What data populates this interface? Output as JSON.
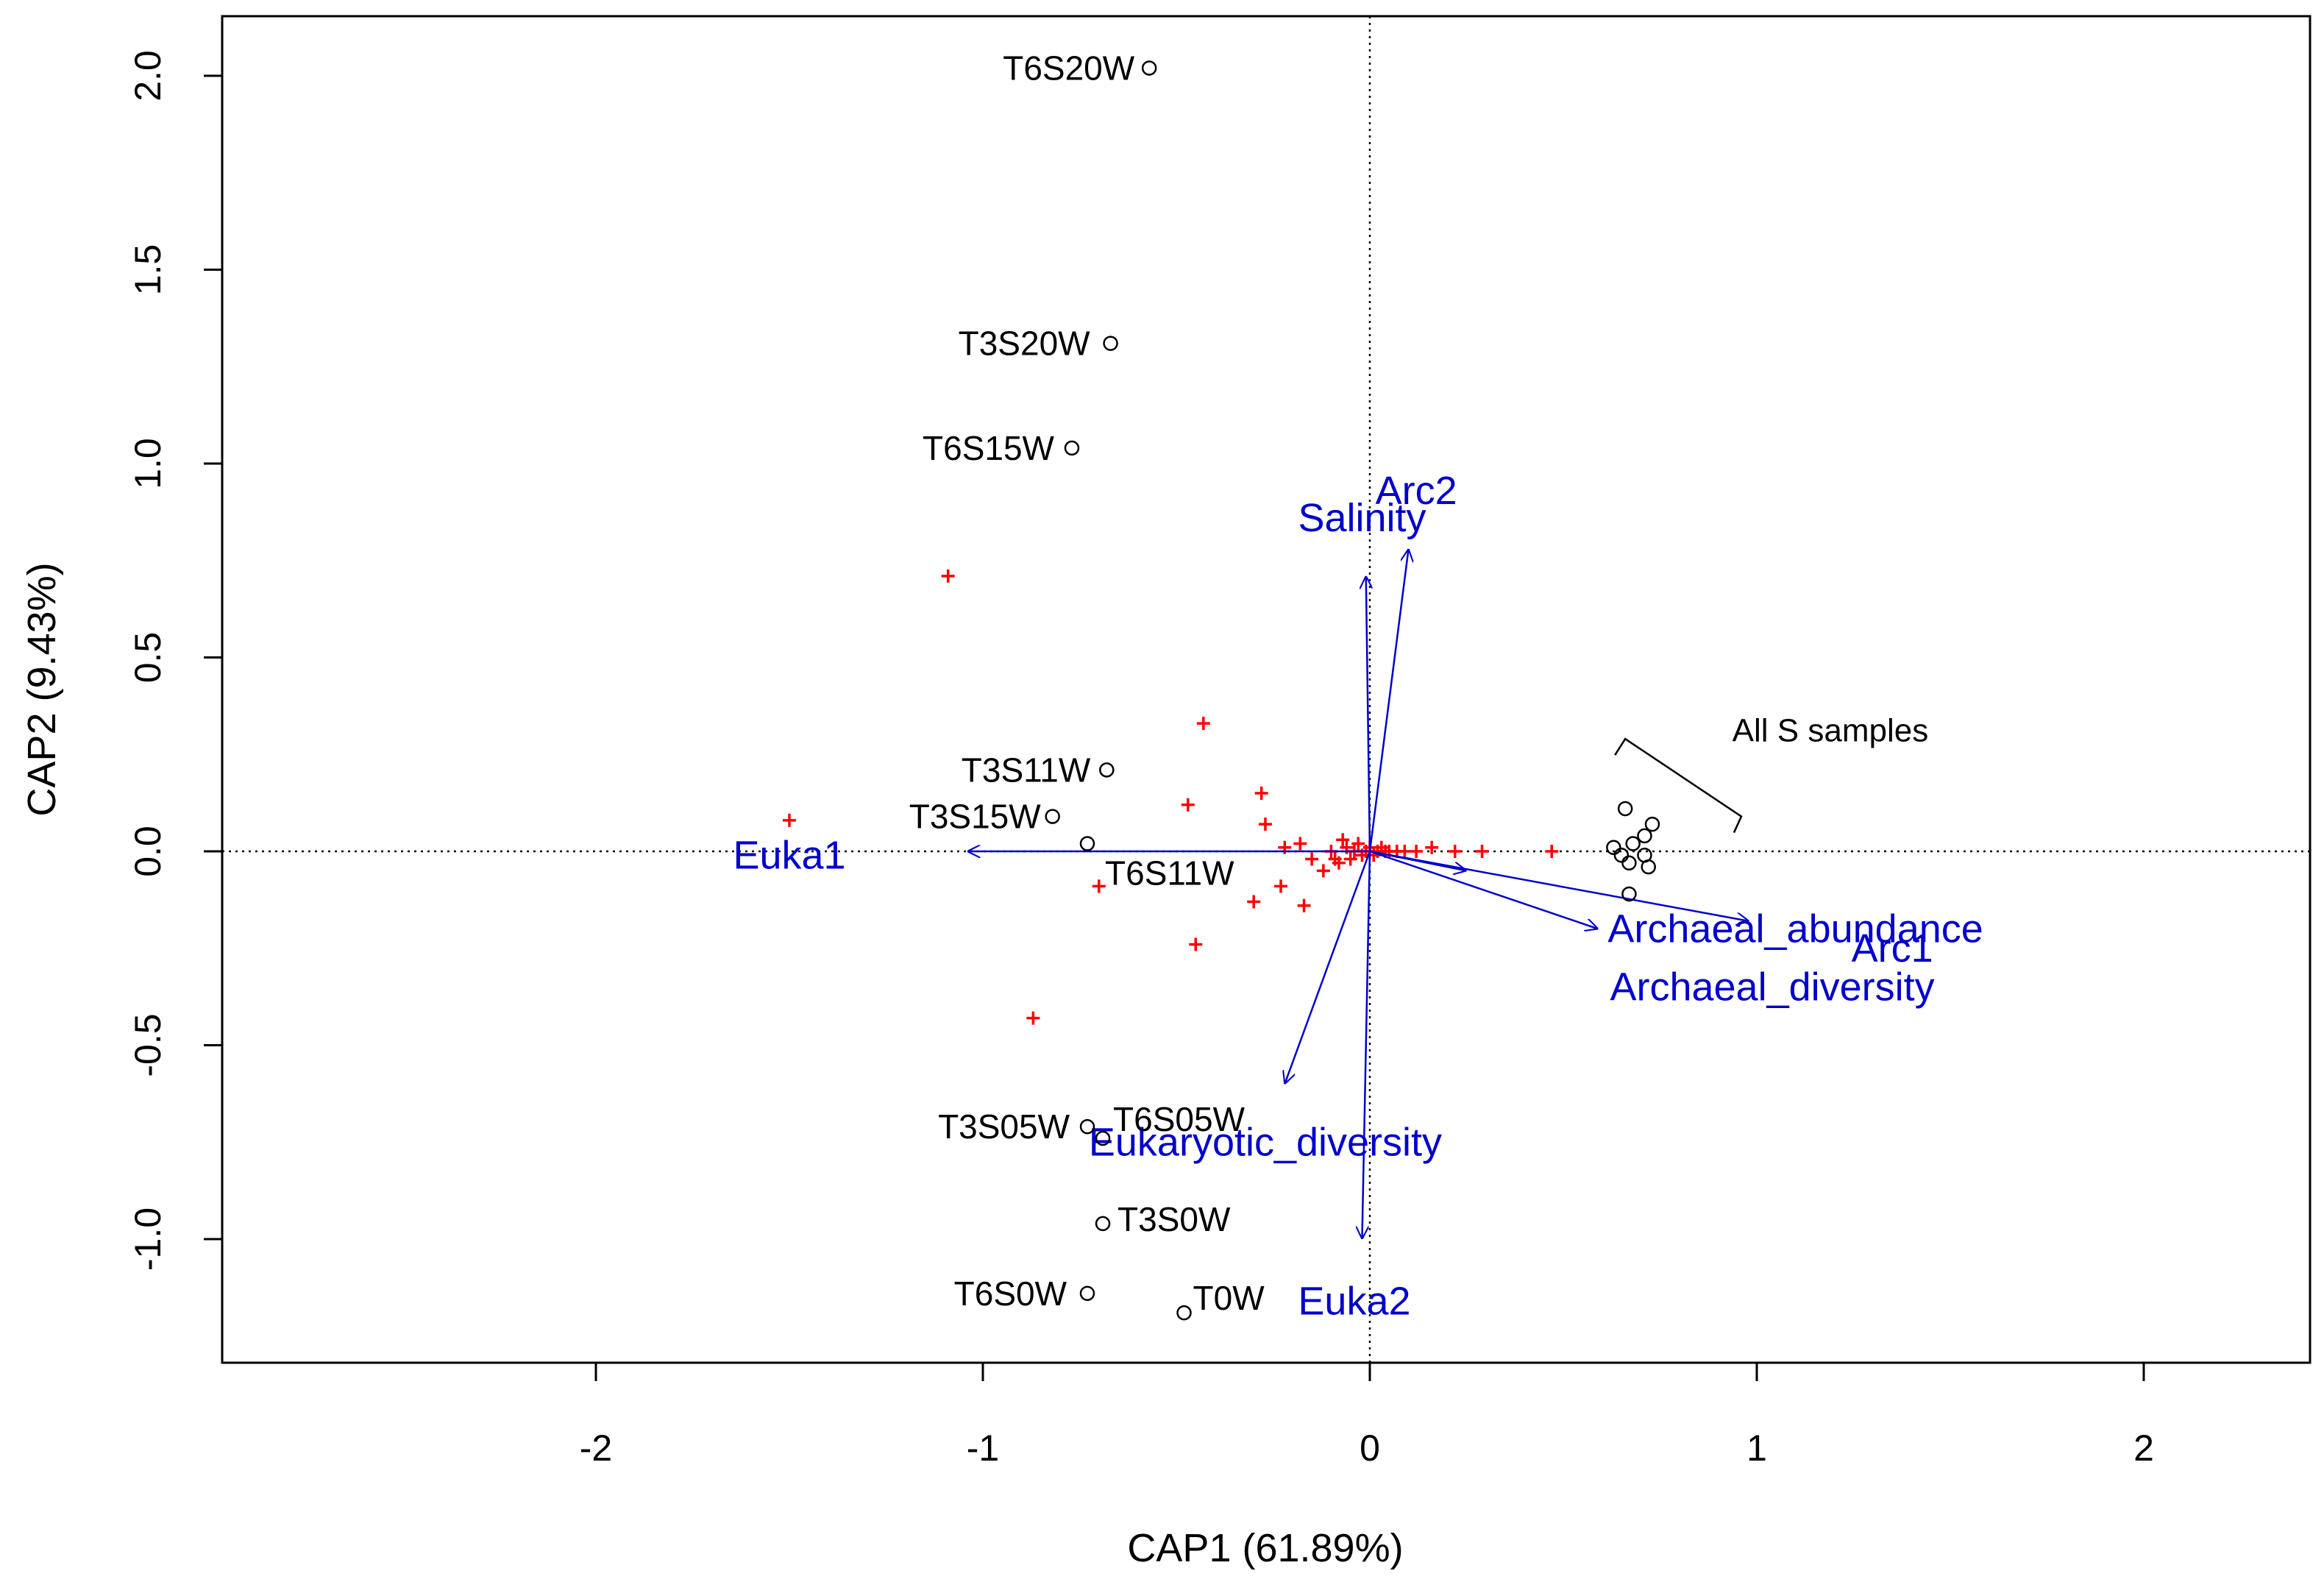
{
  "chart_data": {
    "type": "scatter",
    "title": "",
    "xlabel": "CAP1 (61.89%)",
    "ylabel": "CAP2 (9.43%)",
    "xlim": [
      -2.9,
      2.4
    ],
    "ylim": [
      -1.32,
      2.16
    ],
    "x_ticks": [
      -2,
      -1,
      0,
      1,
      2
    ],
    "x_tick_labels": [
      "-2",
      "-1",
      "0",
      "1",
      "2"
    ],
    "y_ticks": [
      -1.0,
      -0.5,
      0.0,
      0.5,
      1.0,
      1.5,
      2.0
    ],
    "y_tick_labels": [
      "-1.0",
      "-0.5",
      "0.0",
      "0.5",
      "1.0",
      "1.5",
      "2.0"
    ],
    "reference_lines": {
      "x": 0,
      "y": 0,
      "style": "dotted"
    },
    "colors": {
      "sites": "#000000",
      "species": "#ff0000",
      "vectors": "#0000cc"
    },
    "sites": [
      {
        "label": "T6S20W",
        "x": -0.57,
        "y": 2.02
      },
      {
        "label": "T3S20W",
        "x": -0.67,
        "y": 1.31
      },
      {
        "label": "T6S15W",
        "x": -0.77,
        "y": 1.04
      },
      {
        "label": "T3S11W",
        "x": -0.68,
        "y": 0.21
      },
      {
        "label": "T3S15W",
        "x": -0.82,
        "y": 0.09
      },
      {
        "label": "T6S11W",
        "x": -0.73,
        "y": 0.02
      },
      {
        "label": "T3S05W",
        "x": -0.73,
        "y": -0.71
      },
      {
        "label": "T6S05W",
        "x": -0.69,
        "y": -0.74
      },
      {
        "label": "T3S0W",
        "x": -0.69,
        "y": -0.96
      },
      {
        "label": "T6S0W",
        "x": -0.73,
        "y": -1.14
      },
      {
        "label": "T0W",
        "x": -0.48,
        "y": -1.19
      },
      {
        "label": "",
        "x": 0.66,
        "y": 0.11
      },
      {
        "label": "",
        "x": 0.73,
        "y": 0.07
      },
      {
        "label": "",
        "x": 0.71,
        "y": 0.04
      },
      {
        "label": "",
        "x": 0.63,
        "y": 0.01
      },
      {
        "label": "",
        "x": 0.68,
        "y": 0.02
      },
      {
        "label": "",
        "x": 0.65,
        "y": -0.01
      },
      {
        "label": "",
        "x": 0.71,
        "y": -0.01
      },
      {
        "label": "",
        "x": 0.67,
        "y": -0.03
      },
      {
        "label": "",
        "x": 0.72,
        "y": -0.04
      },
      {
        "label": "",
        "x": 0.67,
        "y": -0.11
      }
    ],
    "species": [
      {
        "x": -1.09,
        "y": 0.71
      },
      {
        "x": -1.5,
        "y": 0.08
      },
      {
        "x": -0.43,
        "y": 0.33
      },
      {
        "x": -0.28,
        "y": 0.15
      },
      {
        "x": -0.47,
        "y": 0.12
      },
      {
        "x": -0.27,
        "y": 0.07
      },
      {
        "x": -0.7,
        "y": -0.09
      },
      {
        "x": -0.3,
        "y": -0.13
      },
      {
        "x": -0.17,
        "y": -0.14
      },
      {
        "x": -0.45,
        "y": -0.24
      },
      {
        "x": -0.87,
        "y": -0.43
      },
      {
        "x": -0.23,
        "y": -0.09
      },
      {
        "x": -0.22,
        "y": 0.01
      },
      {
        "x": -0.18,
        "y": 0.02
      },
      {
        "x": -0.15,
        "y": -0.02
      },
      {
        "x": -0.12,
        "y": -0.05
      },
      {
        "x": -0.1,
        "y": 0.0
      },
      {
        "x": -0.08,
        "y": -0.03
      },
      {
        "x": -0.06,
        "y": 0.01
      },
      {
        "x": -0.05,
        "y": -0.02
      },
      {
        "x": -0.04,
        "y": 0.0
      },
      {
        "x": -0.03,
        "y": 0.02
      },
      {
        "x": -0.02,
        "y": -0.01
      },
      {
        "x": -0.01,
        "y": 0.0
      },
      {
        "x": 0.0,
        "y": 0.01
      },
      {
        "x": 0.01,
        "y": -0.01
      },
      {
        "x": 0.02,
        "y": 0.0
      },
      {
        "x": 0.03,
        "y": 0.01
      },
      {
        "x": 0.04,
        "y": 0.0
      },
      {
        "x": 0.05,
        "y": 0.0
      },
      {
        "x": 0.07,
        "y": 0.0
      },
      {
        "x": 0.09,
        "y": 0.0
      },
      {
        "x": 0.12,
        "y": 0.0
      },
      {
        "x": 0.16,
        "y": 0.01
      },
      {
        "x": 0.22,
        "y": 0.0
      },
      {
        "x": 0.29,
        "y": 0.0
      },
      {
        "x": 0.47,
        "y": 0.0
      },
      {
        "x": -0.09,
        "y": -0.02
      },
      {
        "x": -0.07,
        "y": 0.03
      }
    ],
    "vectors": [
      {
        "label": "Euka1",
        "x": -1.04,
        "y": 0.0
      },
      {
        "label": "Arc2",
        "x": 0.1,
        "y": 0.78
      },
      {
        "label": "Salinity",
        "x": -0.01,
        "y": 0.71
      },
      {
        "label": "Archaeal_abundance",
        "x": 0.59,
        "y": -0.2
      },
      {
        "label": "Arc1",
        "x": 0.98,
        "y": -0.18
      },
      {
        "label": "Archaeal_diversity",
        "x": 0.25,
        "y": -0.05
      },
      {
        "label": "Eukaryotic_diversity",
        "x": -0.22,
        "y": -0.6
      },
      {
        "label": "Euka2",
        "x": -0.02,
        "y": -1.0
      }
    ],
    "vector_labels": [
      {
        "label": "Euka1",
        "x": -1.5,
        "y": -0.01
      },
      {
        "label": "Arc2",
        "x": 0.12,
        "y": 0.93
      },
      {
        "label": "Salinity",
        "x": -0.02,
        "y": 0.86
      },
      {
        "label": "Archaeal_abundance",
        "x": 1.1,
        "y": -0.2
      },
      {
        "label": "Arc1",
        "x": 1.35,
        "y": -0.25
      },
      {
        "label": "Archaeal_diversity",
        "x": 1.04,
        "y": -0.35
      },
      {
        "label": "Eukaryotic_diversity",
        "x": -0.27,
        "y": -0.75
      },
      {
        "label": "Euka2",
        "x": -0.04,
        "y": -1.16
      }
    ],
    "annotations": [
      {
        "text": "All S samples",
        "x": 1.19,
        "y": 0.31
      }
    ],
    "bracket": {
      "from": [
        0.66,
        0.29
      ],
      "to": [
        0.96,
        0.09
      ]
    }
  }
}
